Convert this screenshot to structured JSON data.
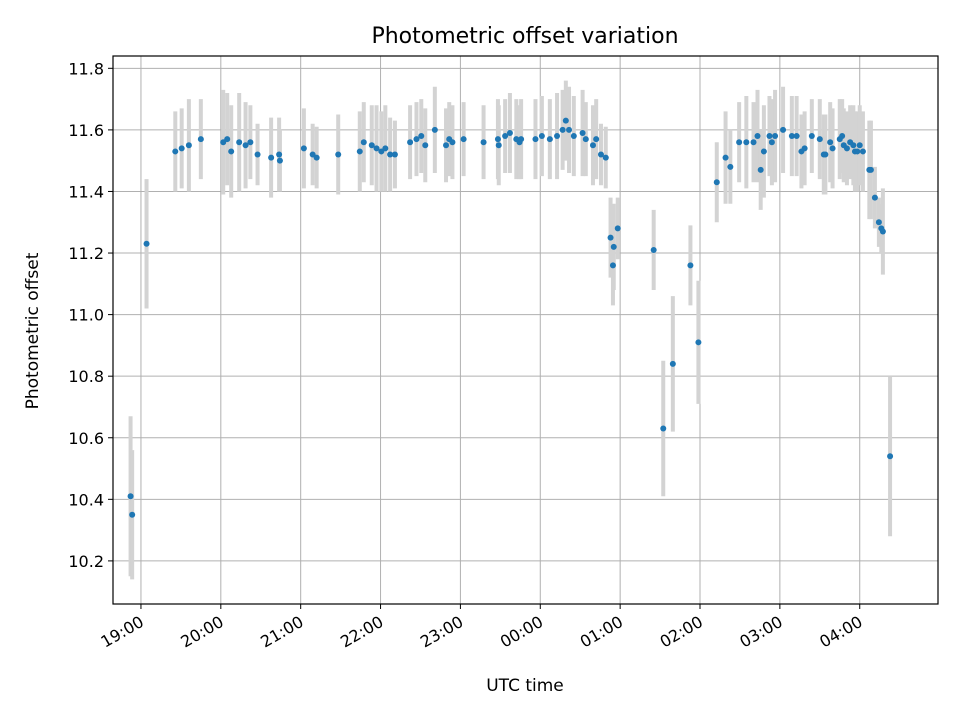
{
  "chart_data": {
    "type": "scatter",
    "title": "Photometric offset variation",
    "xlabel": "UTC time",
    "ylabel": "Photometric offset",
    "xlim_hours": [
      18.65,
      28.98
    ],
    "ylim": [
      10.06,
      11.84
    ],
    "grid": true,
    "colors": {
      "point": "#1f77b4",
      "errorbar": "#d3d3d3",
      "grid": "#b0b0b0"
    },
    "x_ticks": [
      {
        "hours": 19,
        "label": "19:00"
      },
      {
        "hours": 20,
        "label": "20:00"
      },
      {
        "hours": 21,
        "label": "21:00"
      },
      {
        "hours": 22,
        "label": "22:00"
      },
      {
        "hours": 23,
        "label": "23:00"
      },
      {
        "hours": 24,
        "label": "00:00"
      },
      {
        "hours": 25,
        "label": "01:00"
      },
      {
        "hours": 26,
        "label": "02:00"
      },
      {
        "hours": 27,
        "label": "03:00"
      },
      {
        "hours": 28,
        "label": "04:00"
      }
    ],
    "y_ticks": [
      {
        "value": 10.2,
        "label": "10.2"
      },
      {
        "value": 10.4,
        "label": "10.4"
      },
      {
        "value": 10.6,
        "label": "10.6"
      },
      {
        "value": 10.8,
        "label": "10.8"
      },
      {
        "value": 11.0,
        "label": "11.0"
      },
      {
        "value": 11.2,
        "label": "11.2"
      },
      {
        "value": 11.4,
        "label": "11.4"
      },
      {
        "value": 11.6,
        "label": "11.6"
      },
      {
        "value": 11.8,
        "label": "11.8"
      }
    ],
    "points": [
      [
        18.87,
        10.41,
        0.26
      ],
      [
        18.89,
        10.35,
        0.21
      ],
      [
        19.07,
        11.23,
        0.21
      ],
      [
        19.43,
        11.53,
        0.13
      ],
      [
        19.51,
        11.54,
        0.13
      ],
      [
        19.6,
        11.55,
        0.15
      ],
      [
        19.75,
        11.57,
        0.13
      ],
      [
        20.03,
        11.56,
        0.17
      ],
      [
        20.08,
        11.57,
        0.15
      ],
      [
        20.13,
        11.53,
        0.15
      ],
      [
        20.23,
        11.56,
        0.16
      ],
      [
        20.31,
        11.55,
        0.14
      ],
      [
        20.37,
        11.56,
        0.12
      ],
      [
        20.46,
        11.52,
        0.1
      ],
      [
        20.63,
        11.51,
        0.13
      ],
      [
        20.73,
        11.52,
        0.12
      ],
      [
        20.74,
        11.5,
        0.1
      ],
      [
        21.04,
        11.54,
        0.13
      ],
      [
        21.15,
        11.52,
        0.1
      ],
      [
        21.2,
        11.51,
        0.1
      ],
      [
        21.47,
        11.52,
        0.13
      ],
      [
        21.74,
        11.53,
        0.13
      ],
      [
        21.79,
        11.56,
        0.13
      ],
      [
        21.89,
        11.55,
        0.13
      ],
      [
        21.95,
        11.54,
        0.14
      ],
      [
        22.01,
        11.53,
        0.13
      ],
      [
        22.06,
        11.54,
        0.14
      ],
      [
        22.12,
        11.52,
        0.12
      ],
      [
        22.18,
        11.52,
        0.11
      ],
      [
        22.37,
        11.56,
        0.12
      ],
      [
        22.45,
        11.57,
        0.12
      ],
      [
        22.51,
        11.58,
        0.12
      ],
      [
        22.56,
        11.55,
        0.12
      ],
      [
        22.68,
        11.6,
        0.14
      ],
      [
        22.82,
        11.55,
        0.12
      ],
      [
        22.86,
        11.57,
        0.12
      ],
      [
        22.9,
        11.56,
        0.12
      ],
      [
        23.04,
        11.57,
        0.12
      ],
      [
        23.29,
        11.56,
        0.12
      ],
      [
        23.47,
        11.57,
        0.13
      ],
      [
        23.48,
        11.55,
        0.13
      ],
      [
        23.56,
        11.58,
        0.12
      ],
      [
        23.62,
        11.59,
        0.13
      ],
      [
        23.7,
        11.57,
        0.13
      ],
      [
        23.74,
        11.56,
        0.12
      ],
      [
        23.76,
        11.57,
        0.13
      ],
      [
        23.94,
        11.57,
        0.13
      ],
      [
        24.02,
        11.58,
        0.13
      ],
      [
        24.12,
        11.57,
        0.13
      ],
      [
        24.21,
        11.58,
        0.14
      ],
      [
        24.28,
        11.6,
        0.13
      ],
      [
        24.32,
        11.63,
        0.13
      ],
      [
        24.36,
        11.6,
        0.14
      ],
      [
        24.42,
        11.58,
        0.13
      ],
      [
        24.53,
        11.59,
        0.14
      ],
      [
        24.57,
        11.57,
        0.12
      ],
      [
        24.66,
        11.55,
        0.13
      ],
      [
        24.7,
        11.57,
        0.13
      ],
      [
        24.76,
        11.52,
        0.1
      ],
      [
        24.82,
        11.51,
        0.1
      ],
      [
        24.88,
        11.25,
        0.13
      ],
      [
        24.91,
        11.16,
        0.13
      ],
      [
        24.92,
        11.22,
        0.14
      ],
      [
        24.97,
        11.28,
        0.1
      ],
      [
        25.42,
        11.21,
        0.13
      ],
      [
        25.54,
        10.63,
        0.22
      ],
      [
        25.66,
        10.84,
        0.22
      ],
      [
        25.88,
        11.16,
        0.13
      ],
      [
        25.98,
        10.91,
        0.2
      ],
      [
        26.21,
        11.43,
        0.13
      ],
      [
        26.32,
        11.51,
        0.15
      ],
      [
        26.38,
        11.48,
        0.12
      ],
      [
        26.49,
        11.56,
        0.13
      ],
      [
        26.58,
        11.56,
        0.15
      ],
      [
        26.67,
        11.56,
        0.13
      ],
      [
        26.72,
        11.58,
        0.15
      ],
      [
        26.76,
        11.47,
        0.13
      ],
      [
        26.8,
        11.53,
        0.15
      ],
      [
        26.87,
        11.58,
        0.13
      ],
      [
        26.9,
        11.56,
        0.14
      ],
      [
        26.94,
        11.58,
        0.15
      ],
      [
        27.04,
        11.6,
        0.14
      ],
      [
        27.15,
        11.58,
        0.13
      ],
      [
        27.21,
        11.58,
        0.13
      ],
      [
        27.27,
        11.53,
        0.12
      ],
      [
        27.31,
        11.54,
        0.12
      ],
      [
        27.4,
        11.58,
        0.12
      ],
      [
        27.5,
        11.57,
        0.13
      ],
      [
        27.55,
        11.52,
        0.13
      ],
      [
        27.57,
        11.52,
        0.13
      ],
      [
        27.63,
        11.56,
        0.13
      ],
      [
        27.66,
        11.54,
        0.13
      ],
      [
        27.75,
        11.57,
        0.13
      ],
      [
        27.78,
        11.58,
        0.12
      ],
      [
        27.8,
        11.55,
        0.12
      ],
      [
        27.84,
        11.54,
        0.12
      ],
      [
        27.88,
        11.56,
        0.12
      ],
      [
        27.92,
        11.55,
        0.13
      ],
      [
        27.94,
        11.53,
        0.13
      ],
      [
        27.97,
        11.53,
        0.13
      ],
      [
        28.0,
        11.55,
        0.13
      ],
      [
        28.04,
        11.53,
        0.13
      ],
      [
        28.12,
        11.47,
        0.16
      ],
      [
        28.14,
        11.47,
        0.16
      ],
      [
        28.19,
        11.38,
        0.1
      ],
      [
        28.24,
        11.3,
        0.08
      ],
      [
        28.27,
        11.28,
        0.08
      ],
      [
        28.29,
        11.27,
        0.14
      ],
      [
        28.38,
        10.54,
        0.26
      ]
    ]
  }
}
